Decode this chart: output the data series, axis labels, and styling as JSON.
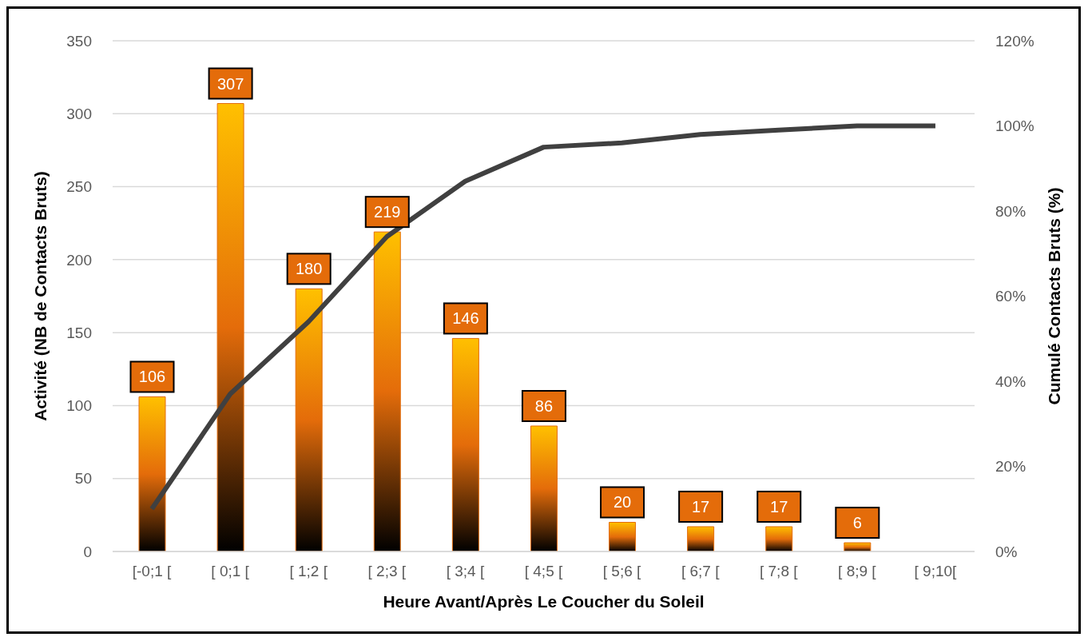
{
  "chart_data": {
    "type": "bar",
    "xlabel": "Heure Avant/Après Le Coucher du Soleil",
    "ylabel": "Activité (NB de Contacts Bruts)",
    "y2label": "Cumulé Contacts Bruts (%)",
    "categories": [
      "[-0;1 [",
      "[ 0;1 [",
      "[ 1;2 [",
      "[ 2;3 [",
      "[ 3;4 [",
      "[ 4;5 [",
      "[ 5;6 [",
      "[ 6;7 [",
      "[ 7;8 [",
      "[ 8;9 [",
      "[ 9;10["
    ],
    "series": [
      {
        "color": "#e46c0a",
        "values": [
          106,
          307,
          180,
          219,
          146,
          86,
          20,
          17,
          17,
          6,
          null
        ],
        "value_labels": [
          "106",
          "307",
          "180",
          "219",
          "146",
          "86",
          "20",
          "17",
          "17",
          "6",
          null
        ]
      },
      {
        "type": "line",
        "axis": "y2",
        "color": "#404040",
        "values": [
          10,
          37,
          54,
          74,
          87,
          95,
          96,
          98,
          99,
          100,
          100
        ]
      }
    ],
    "ylim": [
      0,
      350
    ],
    "yticks": [
      0,
      50,
      100,
      150,
      200,
      250,
      300,
      350
    ],
    "y2lim": [
      0,
      120
    ],
    "y2ticks": [
      {
        "value": 0,
        "label": "0%"
      },
      {
        "value": 20,
        "label": "20%"
      },
      {
        "value": 40,
        "label": "40%"
      },
      {
        "value": 60,
        "label": "60%"
      },
      {
        "value": 80,
        "label": "80%"
      },
      {
        "value": 100,
        "label": "100%"
      },
      {
        "value": 120,
        "label": "120%"
      }
    ],
    "grid": "y",
    "marker": "none",
    "line_style": "solid",
    "legend": false
  }
}
